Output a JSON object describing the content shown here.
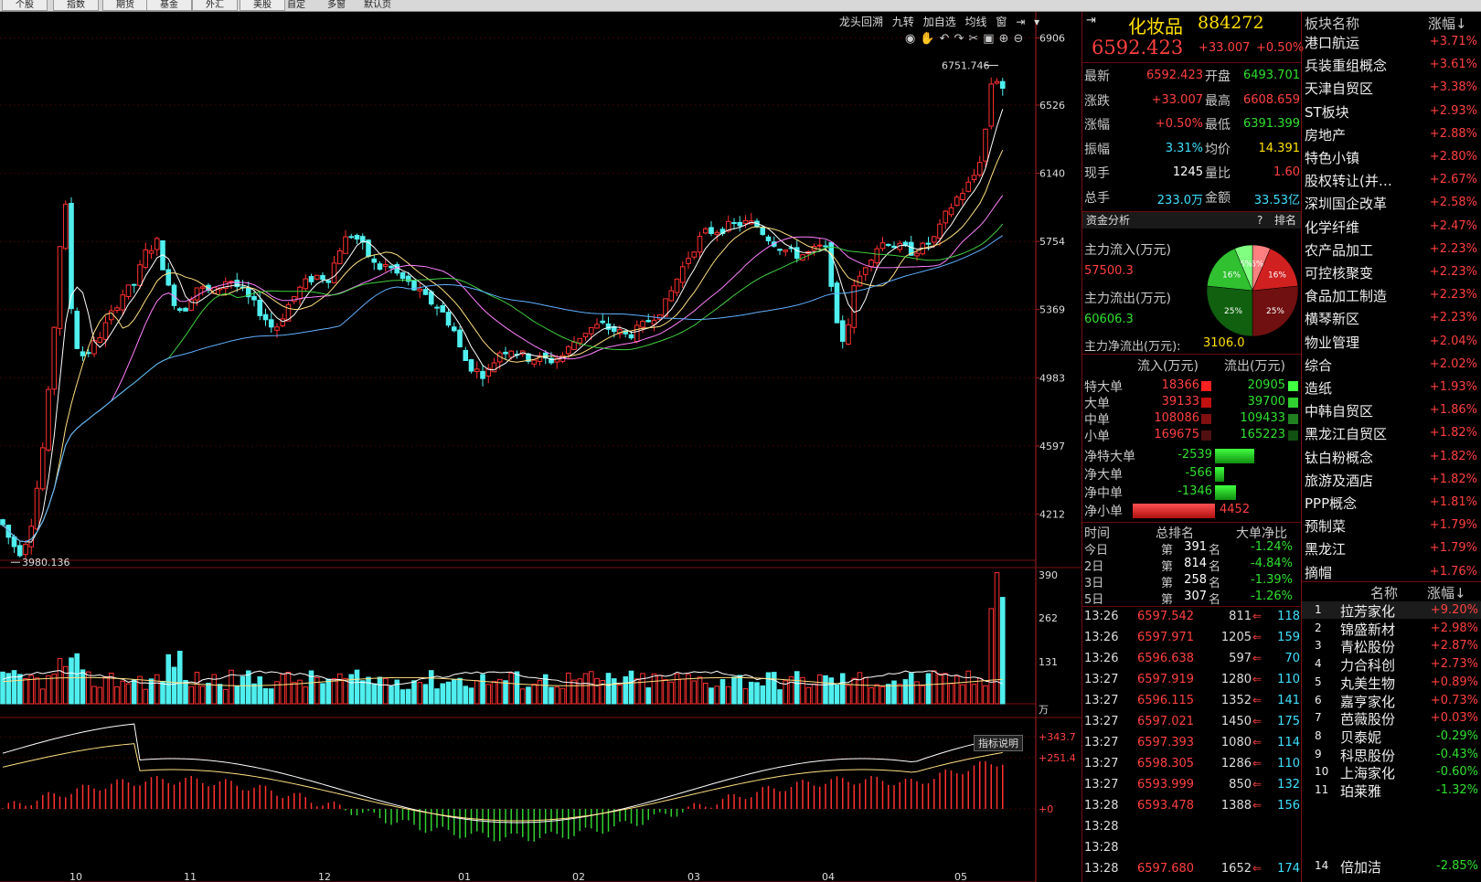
{
  "topbar": {
    "tabs": [
      "个股",
      "指数",
      "期货",
      "基金",
      "外汇",
      "美股"
    ],
    "links": [
      "自定",
      "多窗",
      "默认页"
    ]
  },
  "toolbar": {
    "items": [
      "龙头回溯",
      "九转",
      "加自选",
      "均线",
      "窗"
    ]
  },
  "price_axis": [
    "6906",
    "6526",
    "6140",
    "5754",
    "5369",
    "4983",
    "4597",
    "4212"
  ],
  "price_annotations": {
    "high": "6751.746",
    "low": "3980.136"
  },
  "volume_axis": [
    "390",
    "262",
    "131",
    "万"
  ],
  "macd_axis": [
    "+343.7",
    "+251.4",
    "+0"
  ],
  "macd_button": "指标说明",
  "x_axis": [
    "10",
    "11",
    "12",
    "01",
    "02",
    "03",
    "04",
    "05"
  ],
  "quote": {
    "name": "化妆品",
    "code": "884272",
    "price": "6592.423",
    "change": "+33.007",
    "pct": "+0.50%",
    "stats": [
      {
        "l1": "最新",
        "v1": "6592.423",
        "c1": "red",
        "l2": "开盘",
        "v2": "6493.701",
        "c2": "green"
      },
      {
        "l1": "涨跌",
        "v1": "+33.007",
        "c1": "red",
        "l2": "最高",
        "v2": "6608.659",
        "c2": "red"
      },
      {
        "l1": "涨幅",
        "v1": "+0.50%",
        "c1": "red",
        "l2": "最低",
        "v2": "6391.399",
        "c2": "green"
      },
      {
        "l1": "振幅",
        "v1": "3.31%",
        "c1": "cyan",
        "l2": "均价",
        "v2": "14.391",
        "c2": "yellow"
      },
      {
        "l1": "现手",
        "v1": "1245",
        "c1": "white",
        "l2": "量比",
        "v2": "1.60",
        "c2": "red"
      },
      {
        "l1": "总手",
        "v1": "233.0万",
        "c1": "cyan",
        "l2": "金额",
        "v2": "33.53亿",
        "c2": "cyan"
      }
    ]
  },
  "fund": {
    "title": "资金分析",
    "q": "?",
    "rank": "排名",
    "inflow_label": "主力流入(万元)",
    "inflow": "57500.3",
    "outflow_label": "主力流出(万元)",
    "outflow": "60606.3",
    "net_label": "主力净流出(万元):",
    "net": "3106.0",
    "pie_labels": [
      "6%",
      "16%",
      "25%",
      "6%",
      "16%",
      "25%"
    ],
    "flow_header": [
      "流入(万元)",
      "流出(万元)"
    ],
    "flows": [
      {
        "name": "特大单",
        "in": "18366",
        "out": "20905"
      },
      {
        "name": "大单",
        "in": "39133",
        "out": "39700"
      },
      {
        "name": "中单",
        "in": "108086",
        "out": "109433"
      },
      {
        "name": "小单",
        "in": "169675",
        "out": "165223"
      }
    ],
    "nets": [
      {
        "name": "净特大单",
        "v": "-2539",
        "w": 0.57
      },
      {
        "name": "净大单",
        "v": "-566",
        "w": 0.13
      },
      {
        "name": "净中单",
        "v": "-1346",
        "w": 0.3
      },
      {
        "name": "净小单",
        "v": "4452",
        "w": 1.0
      }
    ],
    "rank_header": [
      "时间",
      "总排名",
      "大单净比"
    ],
    "ranks": [
      {
        "t": "今日",
        "r": "391",
        "p": "-1.24%"
      },
      {
        "t": "2日",
        "r": "814",
        "p": "-4.84%"
      },
      {
        "t": "3日",
        "r": "258",
        "p": "-1.39%"
      },
      {
        "t": "5日",
        "r": "307",
        "p": "-1.26%"
      }
    ],
    "rank_prefix": "第",
    "rank_suffix": "名"
  },
  "ticks": [
    {
      "t": "13:26",
      "p": "6597.542",
      "v": "811",
      "d": "118"
    },
    {
      "t": "13:26",
      "p": "6597.971",
      "v": "1205",
      "d": "159"
    },
    {
      "t": "13:26",
      "p": "6596.638",
      "v": "597",
      "d": "70"
    },
    {
      "t": "13:27",
      "p": "6597.919",
      "v": "1280",
      "d": "110"
    },
    {
      "t": "13:27",
      "p": "6596.115",
      "v": "1352",
      "d": "141"
    },
    {
      "t": "13:27",
      "p": "6597.021",
      "v": "1450",
      "d": "175"
    },
    {
      "t": "13:27",
      "p": "6597.393",
      "v": "1080",
      "d": "114"
    },
    {
      "t": "13:27",
      "p": "6598.305",
      "v": "1286",
      "d": "110"
    },
    {
      "t": "13:27",
      "p": "6593.999",
      "v": "850",
      "d": "132"
    },
    {
      "t": "13:28",
      "p": "6593.478",
      "v": "1388",
      "d": "156"
    },
    {
      "t": "13:28",
      "p": "",
      "v": "",
      "d": ""
    },
    {
      "t": "13:28",
      "p": "",
      "v": "",
      "d": ""
    },
    {
      "t": "13:28",
      "p": "6597.680",
      "v": "1652",
      "d": "174"
    }
  ],
  "sectors": {
    "header": [
      "板块名称",
      "涨幅"
    ],
    "items": [
      {
        "n": "港口航运",
        "p": "+3.71%"
      },
      {
        "n": "兵装重组概念",
        "p": "+3.61%"
      },
      {
        "n": "天津自贸区",
        "p": "+3.38%"
      },
      {
        "n": "ST板块",
        "p": "+2.93%"
      },
      {
        "n": "房地产",
        "p": "+2.88%"
      },
      {
        "n": "特色小镇",
        "p": "+2.80%"
      },
      {
        "n": "股权转让(并…",
        "p": "+2.67%"
      },
      {
        "n": "深圳国企改革",
        "p": "+2.58%"
      },
      {
        "n": "化学纤维",
        "p": "+2.47%"
      },
      {
        "n": "农产品加工",
        "p": "+2.23%"
      },
      {
        "n": "可控核聚变",
        "p": "+2.23%"
      },
      {
        "n": "食品加工制造",
        "p": "+2.23%"
      },
      {
        "n": "横琴新区",
        "p": "+2.23%"
      },
      {
        "n": "物业管理",
        "p": "+2.04%"
      },
      {
        "n": "综合",
        "p": "+2.02%"
      },
      {
        "n": "造纸",
        "p": "+1.93%"
      },
      {
        "n": "中韩自贸区",
        "p": "+1.86%"
      },
      {
        "n": "黑龙江自贸区",
        "p": "+1.82%"
      },
      {
        "n": "钛白粉概念",
        "p": "+1.82%"
      },
      {
        "n": "旅游及酒店",
        "p": "+1.82%"
      },
      {
        "n": "PPP概念",
        "p": "+1.81%"
      },
      {
        "n": "预制菜",
        "p": "+1.79%"
      },
      {
        "n": "黑龙江",
        "p": "+1.79%"
      },
      {
        "n": "摘帽",
        "p": "+1.76%"
      }
    ]
  },
  "stocks": {
    "header": [
      "名称",
      "涨幅"
    ],
    "items": [
      {
        "i": "1",
        "n": "拉芳家化",
        "p": "+9.20%",
        "c": "red"
      },
      {
        "i": "2",
        "n": "锦盛新材",
        "p": "+2.98%",
        "c": "red"
      },
      {
        "i": "3",
        "n": "青松股份",
        "p": "+2.87%",
        "c": "red"
      },
      {
        "i": "4",
        "n": "力合科创",
        "p": "+2.73%",
        "c": "red"
      },
      {
        "i": "5",
        "n": "丸美生物",
        "p": "+0.89%",
        "c": "red"
      },
      {
        "i": "6",
        "n": "嘉亨家化",
        "p": "+0.73%",
        "c": "red"
      },
      {
        "i": "7",
        "n": "芭薇股份",
        "p": "+0.03%",
        "c": "red"
      },
      {
        "i": "8",
        "n": "贝泰妮",
        "p": "-0.29%",
        "c": "green"
      },
      {
        "i": "9",
        "n": "科思股份",
        "p": "-0.43%",
        "c": "green"
      },
      {
        "i": "10",
        "n": "上海家化",
        "p": "-0.60%",
        "c": "green"
      },
      {
        "i": "11",
        "n": "珀莱雅",
        "p": "-1.32%",
        "c": "green"
      },
      {
        "i": "14",
        "n": "倍加洁",
        "p": "-2.85%",
        "c": "green"
      }
    ]
  },
  "colors": {
    "up": "#ff3030",
    "down": "#4fefef",
    "grid": "#7a1010",
    "axis": "#aa2020"
  }
}
